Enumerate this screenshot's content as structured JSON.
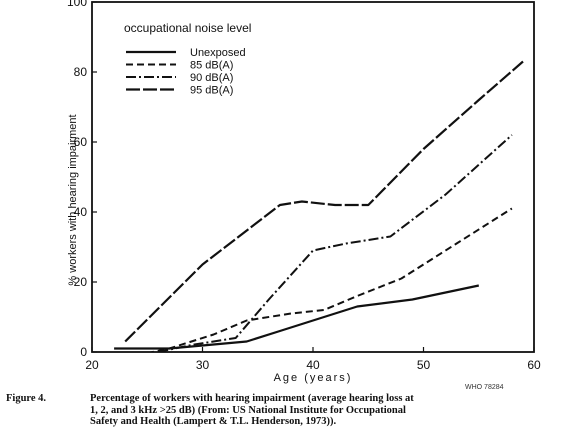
{
  "chart_data": {
    "type": "line",
    "xlabel": "Age (years)",
    "ylabel": "% workers with hearing impairment",
    "xlim": [
      20,
      60
    ],
    "ylim": [
      0,
      100
    ],
    "xticks": [
      20,
      30,
      40,
      50,
      60
    ],
    "yticks": [
      0,
      20,
      40,
      60,
      80,
      100
    ],
    "legend_title": "occupational noise level",
    "legend_position": "top-left",
    "series": [
      {
        "name": "Unexposed",
        "style": "solid",
        "x": [
          22,
          27,
          34,
          37,
          40,
          44,
          49,
          55
        ],
        "y": [
          1,
          1,
          3,
          6,
          9,
          13,
          15,
          19
        ]
      },
      {
        "name": "85 dB(A)",
        "style": "dashed",
        "x": [
          24,
          27,
          31,
          34,
          38,
          41,
          44,
          48,
          53,
          58
        ],
        "y": [
          -1,
          1,
          5,
          9,
          11,
          12,
          16,
          21,
          31,
          41
        ]
      },
      {
        "name": "90 dB(A)",
        "style": "dash-dot",
        "x": [
          26,
          29,
          33,
          36,
          40,
          43,
          47,
          52,
          58
        ],
        "y": [
          0,
          2,
          4,
          15,
          29,
          31,
          33,
          45,
          62
        ]
      },
      {
        "name": "95 dB(A)",
        "style": "long-dash",
        "x": [
          23,
          30,
          37,
          39,
          42,
          45,
          50,
          55,
          59
        ],
        "y": [
          3,
          25,
          42,
          43,
          42,
          42,
          58,
          72,
          83
        ]
      }
    ]
  },
  "caption": {
    "label": "Figure 4.",
    "lines": [
      "Percentage of workers with hearing impairment (average hearing loss at",
      "1, 2, and 3 kHz >25 dB) (From: US National Institute for Occupational",
      "Safety and Health (Lampert & T.L. Henderson, 1973))."
    ],
    "code": "WHO 78284"
  }
}
